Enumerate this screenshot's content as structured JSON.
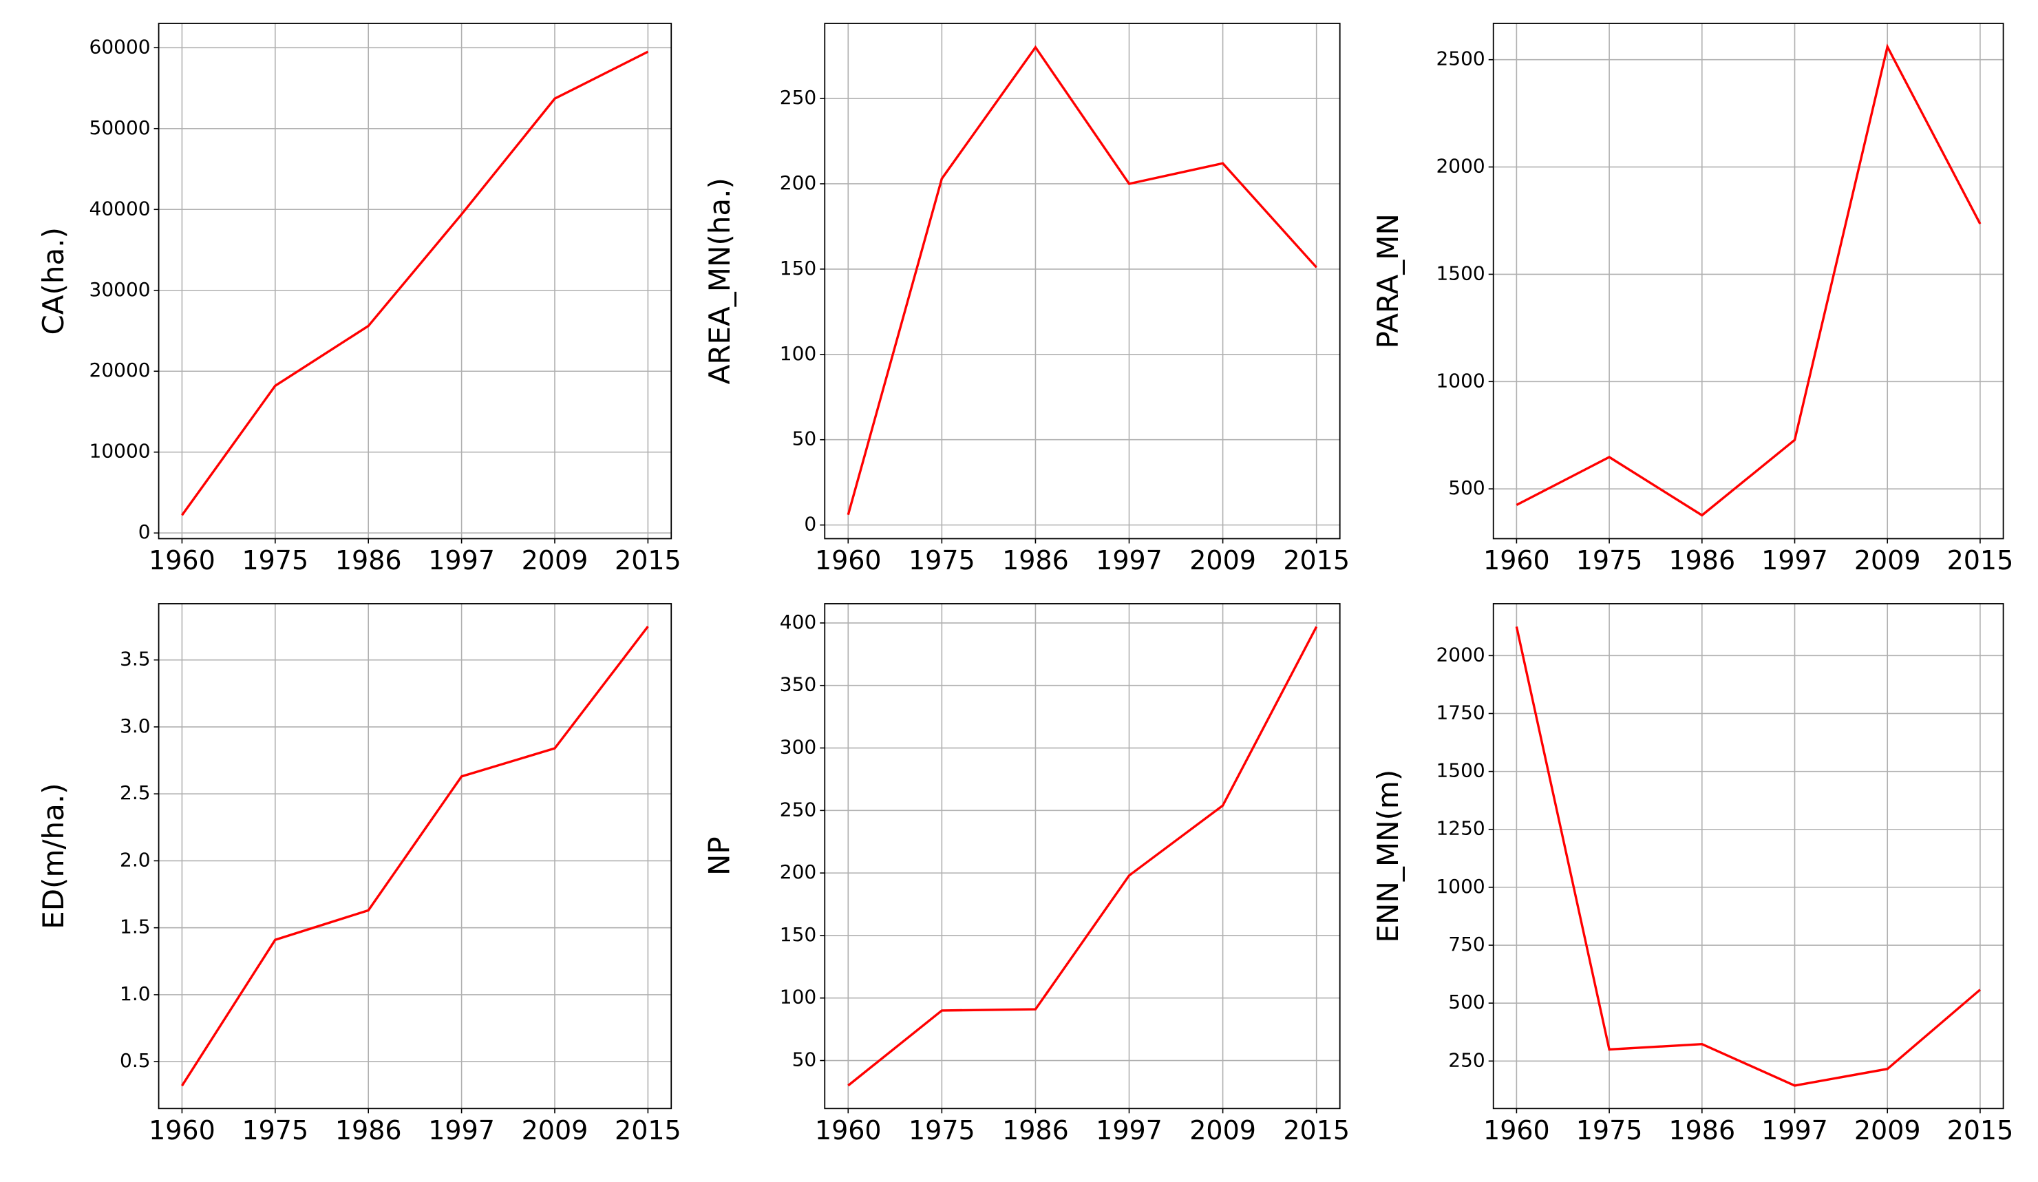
{
  "chart_data": [
    {
      "type": "line",
      "y_label": "CA(ha.)",
      "categories": [
        "1960",
        "1975",
        "1986",
        "1997",
        "2009",
        "2015"
      ],
      "values": [
        2200,
        18200,
        25600,
        39400,
        53700,
        59500
      ],
      "color": "#ff0000",
      "ylim": [
        -700,
        63000
      ],
      "yticks": [
        0,
        10000,
        20000,
        30000,
        40000,
        50000,
        60000
      ],
      "grid": true
    },
    {
      "type": "line",
      "y_label": "AREA_MN(ha.)",
      "categories": [
        "1960",
        "1975",
        "1986",
        "1997",
        "2009",
        "2015"
      ],
      "values": [
        6,
        203,
        280,
        200,
        212,
        151
      ],
      "color": "#ff0000",
      "ylim": [
        -8,
        294
      ],
      "yticks": [
        0,
        50,
        100,
        150,
        200,
        250
      ],
      "grid": true
    },
    {
      "type": "line",
      "y_label": "PARA_MN",
      "categories": [
        "1960",
        "1975",
        "1986",
        "1997",
        "2009",
        "2015"
      ],
      "values": [
        425,
        648,
        377,
        728,
        2560,
        1735
      ],
      "color": "#ff0000",
      "ylim": [
        268,
        2669
      ],
      "yticks": [
        500,
        1000,
        1500,
        2000,
        2500
      ],
      "grid": true
    },
    {
      "type": "line",
      "y_label": "ED(m/ha.)",
      "categories": [
        "1960",
        "1975",
        "1986",
        "1997",
        "2009",
        "2015"
      ],
      "values": [
        0.32,
        1.41,
        1.63,
        2.63,
        2.84,
        3.75
      ],
      "color": "#ff0000",
      "ylim": [
        0.15,
        3.92
      ],
      "yticks": [
        0.5,
        {
          "value": 1,
          "label": "1.0"
        },
        1.5,
        {
          "value": 2,
          "label": "2.0"
        },
        2.5,
        {
          "value": 3,
          "label": "3.0"
        },
        3.5
      ],
      "grid": true
    },
    {
      "type": "line",
      "y_label": "NP",
      "categories": [
        "1960",
        "1975",
        "1986",
        "1997",
        "2009",
        "2015"
      ],
      "values": [
        30,
        90,
        91,
        198,
        254,
        397
      ],
      "color": "#ff0000",
      "ylim": [
        11.6,
        415.4
      ],
      "yticks": [
        50,
        100,
        150,
        200,
        250,
        300,
        350,
        400
      ],
      "grid": true
    },
    {
      "type": "line",
      "y_label": "ENN_MN(m)",
      "categories": [
        "1960",
        "1975",
        "1986",
        "1997",
        "2009",
        "2015"
      ],
      "values": [
        2125,
        300,
        323,
        144,
        216,
        558
      ],
      "color": "#ff0000",
      "ylim": [
        45,
        2224
      ],
      "yticks": [
        250,
        500,
        750,
        1000,
        1250,
        1500,
        1750,
        2000
      ],
      "grid": true
    }
  ]
}
